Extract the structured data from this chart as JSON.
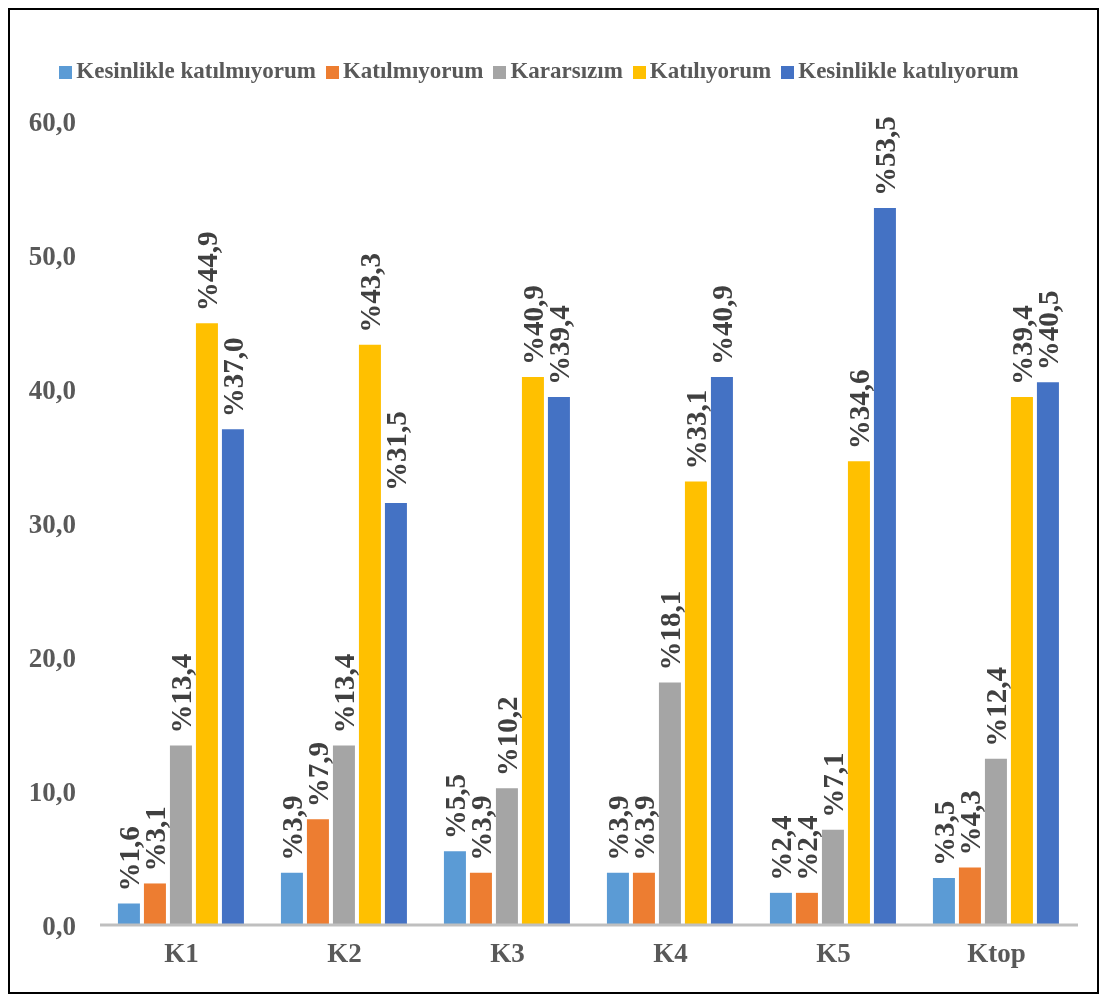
{
  "chart_data": {
    "type": "bar",
    "categories": [
      "K1",
      "K2",
      "K3",
      "K4",
      "K5",
      "Ktop"
    ],
    "series": [
      {
        "name": "Kesinlikle katılmıyorum",
        "color": "#5b9bd5",
        "values": [
          1.6,
          3.9,
          5.5,
          3.9,
          2.4,
          3.5
        ],
        "value_labels": [
          "%1,6",
          "%3,9",
          "%5,5",
          "%3,9",
          "%2,4",
          "%3,5"
        ]
      },
      {
        "name": "Katılmıyorum",
        "color": "#ed7d31",
        "values": [
          3.1,
          7.9,
          3.9,
          3.9,
          2.4,
          4.3
        ],
        "value_labels": [
          "%3,1",
          "%7,9",
          "%3,9",
          "%3,9",
          "%2,4",
          "%4,3"
        ]
      },
      {
        "name": "Kararsızım",
        "color": "#a5a5a5",
        "values": [
          13.4,
          13.4,
          10.2,
          18.1,
          7.1,
          12.4
        ],
        "value_labels": [
          "%13,4",
          "%13,4",
          "%10,2",
          "%18,1",
          "%7,1",
          "%12,4"
        ]
      },
      {
        "name": "Katılıyorum",
        "color": "#ffc000",
        "values": [
          44.9,
          43.3,
          40.9,
          33.1,
          34.6,
          39.4
        ],
        "value_labels": [
          "%44,9",
          "%43,3",
          "%40,9",
          "%33,1",
          "%34,6",
          "%39,4"
        ]
      },
      {
        "name": "Kesinlikle katılıyorum",
        "color": "#4472c4",
        "values": [
          37.0,
          31.5,
          39.4,
          40.9,
          53.5,
          40.5
        ],
        "value_labels": [
          "%37,0",
          "%31,5",
          "%39,4",
          "%40,9",
          "%53,5",
          "%40,5"
        ]
      }
    ],
    "ylim": [
      0,
      60
    ],
    "yticks": [
      {
        "value": 0,
        "label": "0,0"
      },
      {
        "value": 10,
        "label": "10,0"
      },
      {
        "value": 20,
        "label": "20,0"
      },
      {
        "value": 30,
        "label": "30,0"
      },
      {
        "value": 40,
        "label": "40,0"
      },
      {
        "value": 50,
        "label": "50,0"
      },
      {
        "value": 60,
        "label": "60,0"
      }
    ],
    "legend": "top"
  }
}
